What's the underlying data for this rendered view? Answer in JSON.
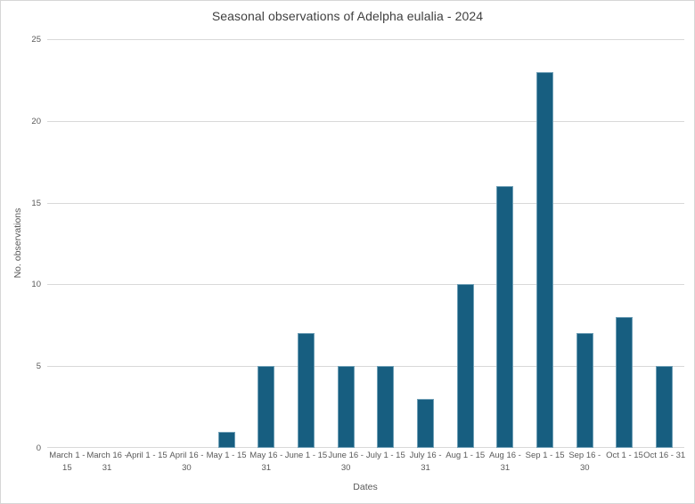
{
  "chart_data": {
    "type": "bar",
    "title": "Seasonal observations of Adelpha eulalia - 2024",
    "xlabel": "Dates",
    "ylabel": "No. observations",
    "ylim": [
      0,
      25
    ],
    "yticks": [
      0,
      5,
      10,
      15,
      20,
      25
    ],
    "grid": true,
    "legend": "none",
    "categories": [
      "March 1 - 15",
      "March 16 - 31",
      "April 1 - 15",
      "April 16 - 30",
      "May 1 - 15",
      "May 16 - 31",
      "June 1 - 15",
      "June 16 - 30",
      "July 1 - 15",
      "July 16 - 31",
      "Aug 1 - 15",
      "Aug 16 - 31",
      "Sep 1 - 15",
      "Sep 16 - 30",
      "Oct 1 - 15",
      "Oct 16 - 31"
    ],
    "category_label_lines": [
      [
        "March 1 -",
        "15"
      ],
      [
        "March 16 -",
        "31"
      ],
      [
        "April 1 - 15"
      ],
      [
        "April 16 -",
        "30"
      ],
      [
        "May 1 - 15"
      ],
      [
        "May 16 -",
        "31"
      ],
      [
        "June 1 - 15"
      ],
      [
        "June 16 -",
        "30"
      ],
      [
        "July 1 - 15"
      ],
      [
        "July 16 -",
        "31"
      ],
      [
        "Aug 1 - 15"
      ],
      [
        "Aug 16 -",
        "31"
      ],
      [
        "Sep 1 - 15"
      ],
      [
        "Sep 16 -",
        "30"
      ],
      [
        "Oct 1 - 15"
      ],
      [
        "Oct 16 - 31"
      ]
    ],
    "values": [
      0,
      0,
      0,
      0,
      1,
      5,
      7,
      5,
      5,
      3,
      10,
      16,
      23,
      7,
      8,
      5
    ]
  },
  "colors": {
    "bar": "#175e80",
    "bar_edge": "#6f9fb6",
    "grid": "#d9d9d9",
    "text": "#595959",
    "title_text": "#404040",
    "border": "#d6d6d6"
  }
}
